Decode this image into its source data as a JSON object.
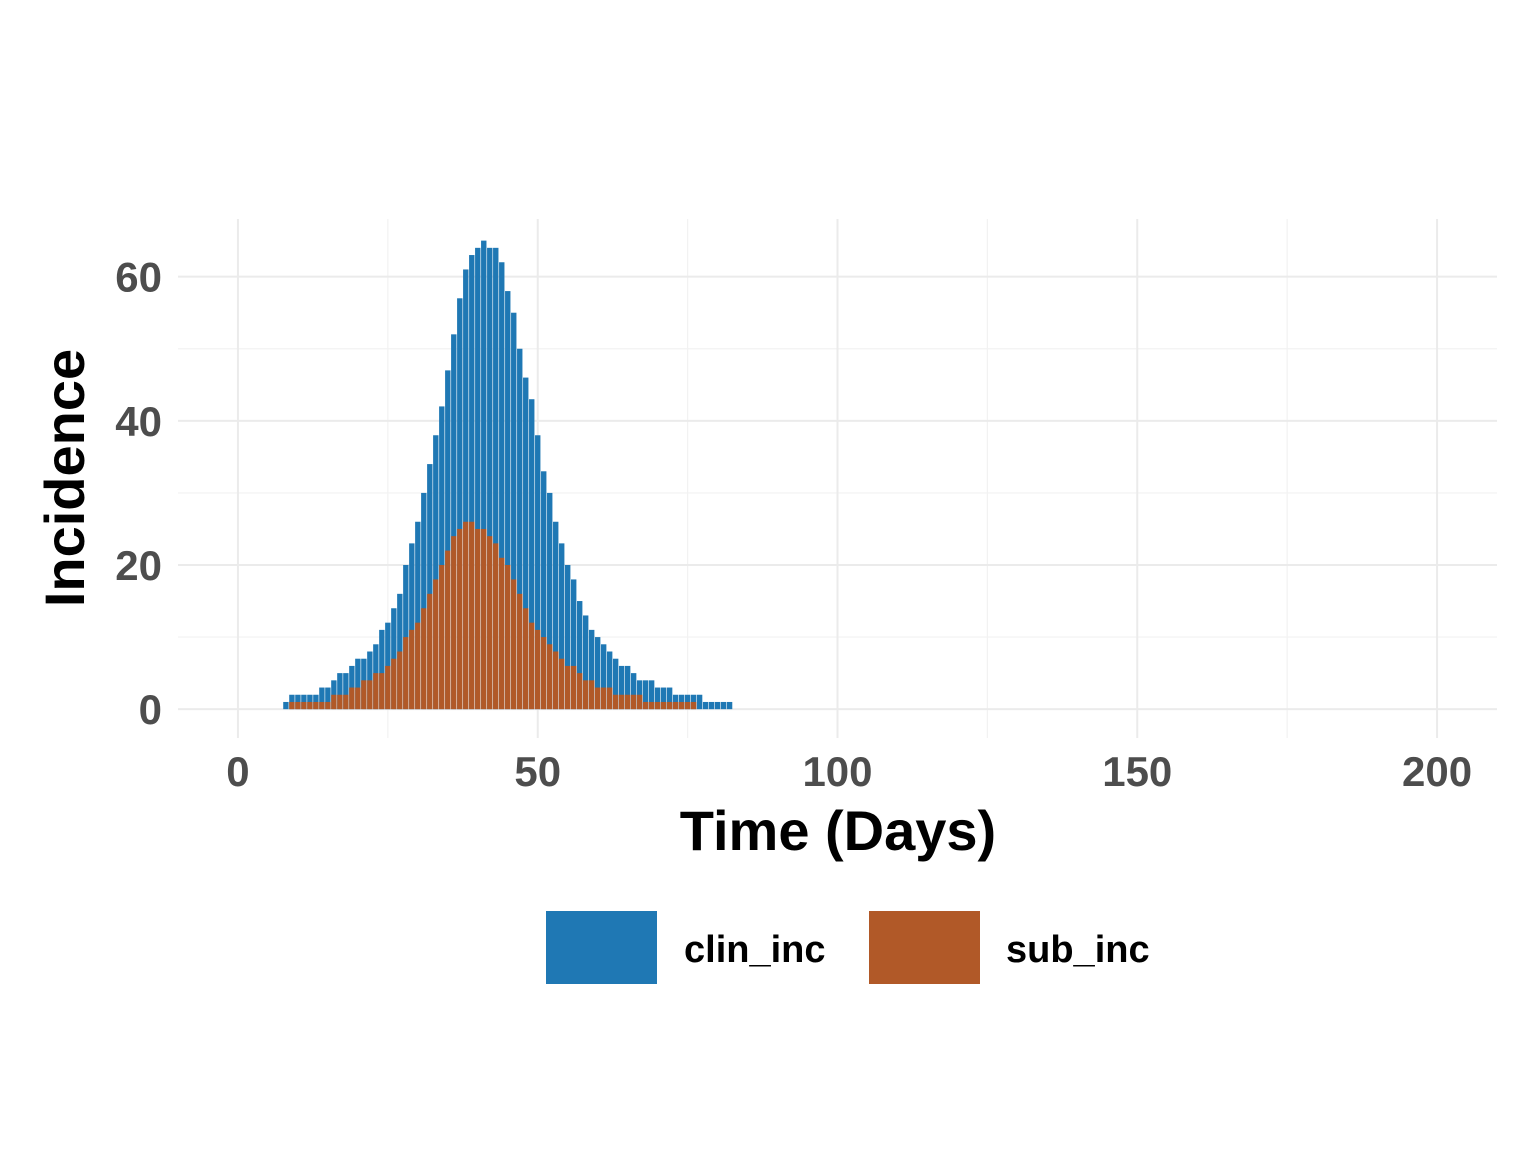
{
  "chart_data": {
    "type": "bar",
    "title": "",
    "xlabel": "Time (Days)",
    "ylabel": "Incidence",
    "xlim": [
      -10,
      210
    ],
    "ylim": [
      -4,
      68
    ],
    "x_ticks": [
      0,
      50,
      100,
      150,
      200
    ],
    "x_tick_labels": [
      "0",
      "50",
      "100",
      "150",
      "200"
    ],
    "y_ticks": [
      0,
      20,
      40,
      60
    ],
    "y_tick_labels": [
      "0",
      "20",
      "40",
      "60"
    ],
    "grid": true,
    "legend_position": "bottom",
    "series": [
      {
        "name": "clin_inc",
        "color": "#1f78b4",
        "x": [
          8,
          9,
          10,
          11,
          12,
          13,
          14,
          15,
          16,
          17,
          18,
          19,
          20,
          21,
          22,
          23,
          24,
          25,
          26,
          27,
          28,
          29,
          30,
          31,
          32,
          33,
          34,
          35,
          36,
          37,
          38,
          39,
          40,
          41,
          42,
          43,
          44,
          45,
          46,
          47,
          48,
          49,
          50,
          51,
          52,
          53,
          54,
          55,
          56,
          57,
          58,
          59,
          60,
          61,
          62,
          63,
          64,
          65,
          66,
          67,
          68,
          69,
          70,
          71,
          72,
          73,
          74,
          75,
          76,
          77,
          78,
          79,
          80,
          81,
          82
        ],
        "values": [
          1,
          2,
          2,
          2,
          2,
          2,
          3,
          3,
          4,
          5,
          5,
          6,
          7,
          7,
          8,
          9,
          11,
          12,
          14,
          16,
          20,
          23,
          26,
          30,
          34,
          38,
          42,
          47,
          52,
          57,
          61,
          63,
          64,
          65,
          64,
          64,
          62,
          58,
          55,
          50,
          46,
          43,
          38,
          33,
          30,
          26,
          23,
          20,
          18,
          15,
          13,
          11,
          10,
          9,
          8,
          7,
          6,
          6,
          5,
          4,
          4,
          4,
          3,
          3,
          3,
          2,
          2,
          2,
          2,
          2,
          1,
          1,
          1,
          1,
          1
        ]
      },
      {
        "name": "sub_inc",
        "color": "#b15928",
        "x": [
          9,
          10,
          11,
          12,
          13,
          14,
          15,
          16,
          17,
          18,
          19,
          20,
          21,
          22,
          23,
          24,
          25,
          26,
          27,
          28,
          29,
          30,
          31,
          32,
          33,
          34,
          35,
          36,
          37,
          38,
          39,
          40,
          41,
          42,
          43,
          44,
          45,
          46,
          47,
          48,
          49,
          50,
          51,
          52,
          53,
          54,
          55,
          56,
          57,
          58,
          59,
          60,
          61,
          62,
          63,
          64,
          65,
          66,
          67,
          68,
          69,
          70,
          71,
          72,
          73,
          74,
          75,
          76
        ],
        "values": [
          1,
          1,
          1,
          1,
          1,
          1,
          1,
          2,
          2,
          2,
          3,
          3,
          4,
          4,
          5,
          5,
          6,
          7,
          8,
          10,
          11,
          12,
          14,
          16,
          18,
          20,
          22,
          24,
          25,
          26,
          26,
          25,
          25,
          24,
          23,
          21,
          20,
          18,
          16,
          14,
          12,
          11,
          10,
          9,
          8,
          7,
          6,
          6,
          5,
          4,
          4,
          3,
          3,
          3,
          2,
          2,
          2,
          2,
          2,
          1,
          1,
          1,
          1,
          1,
          1,
          1,
          1,
          1
        ]
      }
    ]
  }
}
